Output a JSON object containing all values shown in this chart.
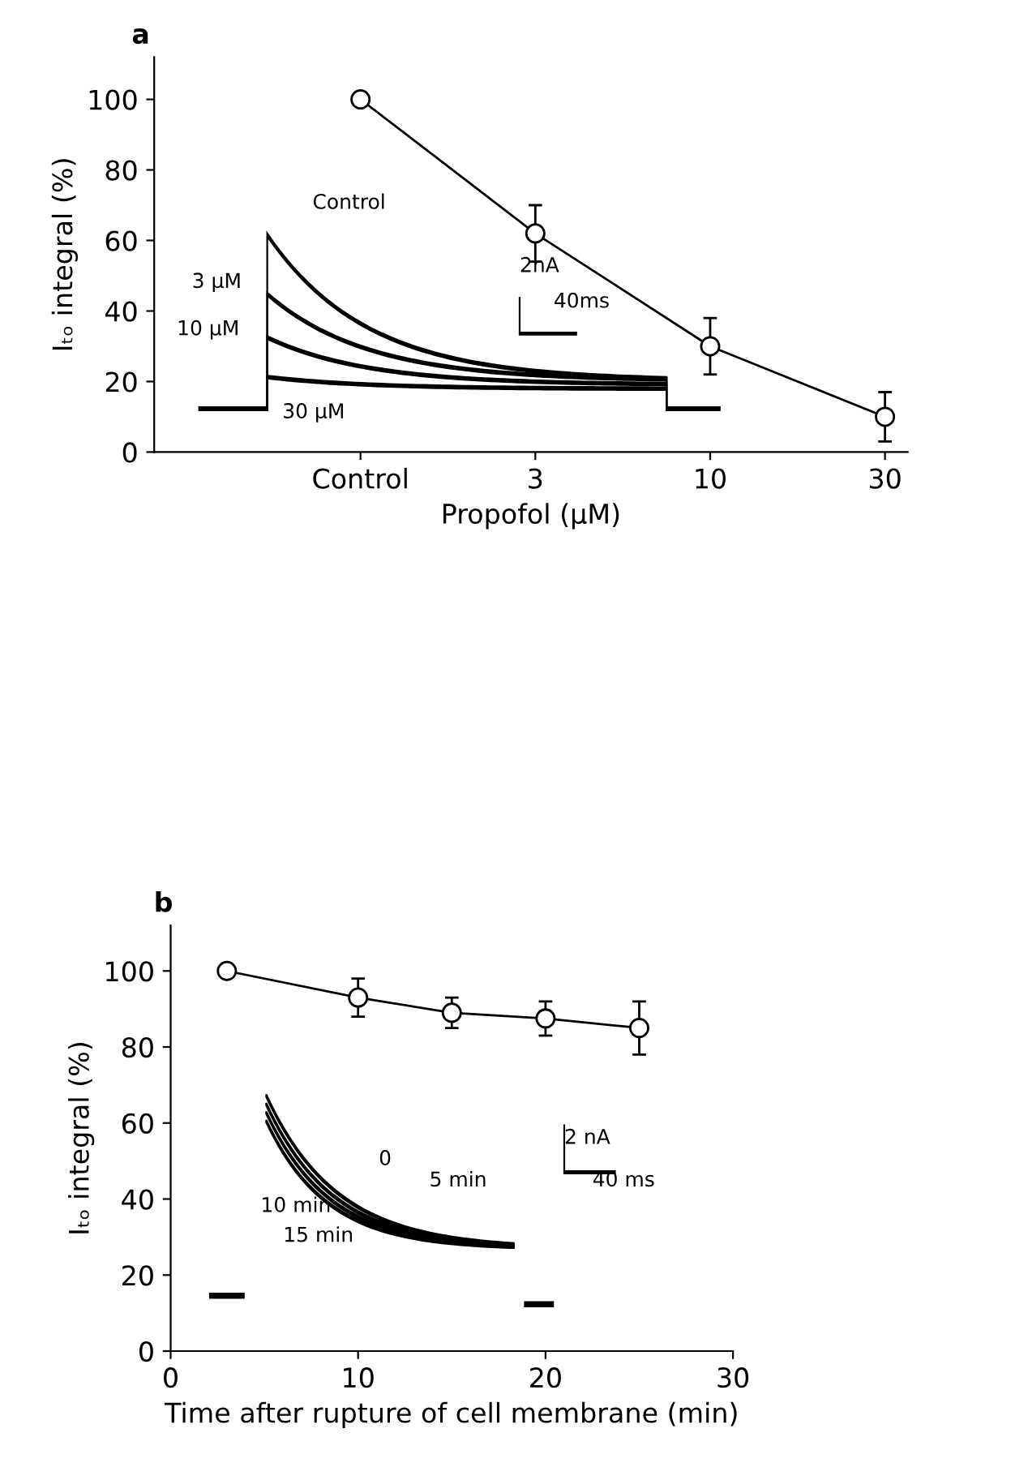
{
  "chart_data": [
    {
      "type": "line",
      "title": "a",
      "xlabel": "Propofol (μM)",
      "ylabel": "Iₜₒ integral (%)",
      "categories": [
        "Control",
        "3",
        "10",
        "30"
      ],
      "series": [
        {
          "color": "#000000",
          "values": [
            100,
            62,
            30,
            10
          ],
          "errors": [
            null,
            [
              54,
              70
            ],
            [
              22,
              38
            ],
            [
              3,
              17
            ]
          ]
        }
      ],
      "ylim": [
        0,
        112
      ],
      "yticks": [
        0,
        20,
        40,
        60,
        80,
        100
      ],
      "marker": "circle",
      "line_style": "solid",
      "grid": false,
      "legend": false,
      "annotations": [
        "Control",
        "3 μM",
        "10 μM",
        "30 μM",
        "2nA",
        "40ms"
      ]
    },
    {
      "type": "line",
      "title": "b",
      "xlabel": "Time after rupture of cell membrane (min)",
      "ylabel": "Iₜₒ integral (%)",
      "x": [
        3,
        10,
        15,
        20,
        25
      ],
      "series": [
        {
          "color": "#000000",
          "values": [
            100,
            93,
            89,
            87.5,
            85
          ],
          "errors": [
            null,
            [
              88,
              98
            ],
            [
              85,
              93
            ],
            [
              83,
              92
            ],
            [
              78,
              92
            ]
          ]
        }
      ],
      "xlim": [
        0,
        30
      ],
      "xticks": [
        0,
        10,
        20,
        30
      ],
      "ylim": [
        0,
        112
      ],
      "yticks": [
        0,
        20,
        40,
        60,
        80,
        100
      ],
      "marker": "circle",
      "line_style": "solid",
      "grid": false,
      "legend": false,
      "annotations": [
        "0",
        "5 min",
        "10 min",
        "15 min",
        "2 nA",
        "40 ms"
      ]
    }
  ]
}
